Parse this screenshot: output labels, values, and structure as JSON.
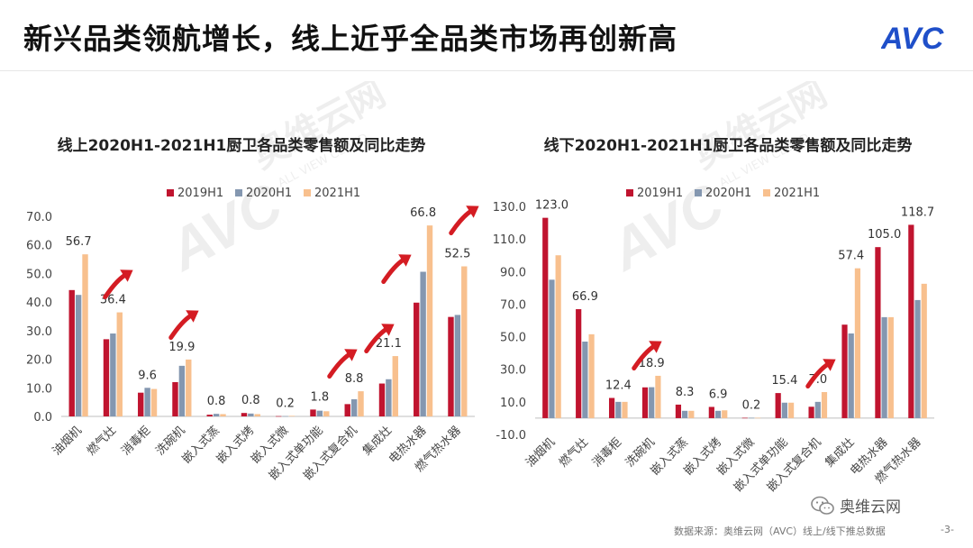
{
  "page": {
    "title": "新兴品类领航增长，线上近乎全品类市场再创新高",
    "brand": "AVC",
    "watermark_cn": "奥维云网",
    "watermark_en": "ALL VIEW CLOUD",
    "wechat_label": "奥维云网",
    "source": "数据来源：奥维云网（AVC）线上/线下推总数据",
    "page_number": "-3-"
  },
  "colors": {
    "2019H1": "#c0142f",
    "2020H1": "#8497b0",
    "2021H1": "#f8c08e",
    "arrow": "#d41c23",
    "brand": "#1f4fc9"
  },
  "chart_data": [
    {
      "type": "bar",
      "title": "线上2020H1-2021H1厨卫各品类零售额及同比走势",
      "legend": [
        "2019H1",
        "2020H1",
        "2021H1"
      ],
      "categories": [
        "油烟机",
        "燃气灶",
        "消毒柜",
        "洗碗机",
        "嵌入式蒸",
        "嵌入式烤",
        "嵌入式微",
        "嵌入式单功能",
        "嵌入式复合机",
        "集成灶",
        "电热水器",
        "燃气热水器"
      ],
      "series": [
        {
          "name": "2019H1",
          "values": [
            44.2,
            27.0,
            8.3,
            12.0,
            0.6,
            1.2,
            0.1,
            2.4,
            4.3,
            11.5,
            39.8,
            34.8
          ]
        },
        {
          "name": "2020H1",
          "values": [
            42.5,
            29.0,
            10.0,
            17.7,
            0.9,
            1.0,
            0.1,
            2.0,
            6.0,
            13.0,
            50.6,
            35.5
          ]
        },
        {
          "name": "2021H1",
          "values": [
            56.7,
            36.4,
            9.6,
            19.9,
            0.8,
            0.8,
            0.2,
            1.8,
            8.8,
            21.1,
            66.8,
            52.5
          ]
        }
      ],
      "data_labels": [
        "56.7",
        "36.4",
        "9.6",
        "19.9",
        "0.8",
        "0.8",
        "0.2",
        "1.8",
        "8.8",
        "21.1",
        "66.8",
        "52.5"
      ],
      "ylim": [
        0,
        70
      ],
      "yticks": [
        "0.0",
        "10.0",
        "20.0",
        "30.0",
        "40.0",
        "50.0",
        "60.0",
        "70.0"
      ],
      "grid": false,
      "legend_position": "top"
    },
    {
      "type": "bar",
      "title": "线下2020H1-2021H1厨卫各品类零售额及同比走势",
      "legend": [
        "2019H1",
        "2020H1",
        "2021H1"
      ],
      "categories": [
        "油烟机",
        "燃气灶",
        "消毒柜",
        "洗碗机",
        "嵌入式蒸",
        "嵌入式烤",
        "嵌入式微",
        "嵌入式单功能",
        "嵌入式复合机",
        "集成灶",
        "电热水器",
        "燃气热水器"
      ],
      "series": [
        {
          "name": "2019H1",
          "values": [
            123.0,
            66.9,
            12.4,
            18.9,
            8.3,
            6.9,
            0.2,
            15.4,
            7.0,
            57.4,
            105.0,
            118.7
          ]
        },
        {
          "name": "2020H1",
          "values": [
            85.0,
            47.0,
            10.0,
            19.0,
            4.5,
            4.5,
            0.2,
            9.5,
            10.0,
            52.0,
            62.0,
            72.5
          ]
        },
        {
          "name": "2021H1",
          "values": [
            100.0,
            51.5,
            10.0,
            26.0,
            4.5,
            4.8,
            0.2,
            9.5,
            16.0,
            92.0,
            62.0,
            82.5
          ]
        }
      ],
      "data_labels": [
        "123.0",
        "66.9",
        "12.4",
        "18.9",
        "8.3",
        "6.9",
        "0.2",
        "15.4",
        "7.0",
        "57.4",
        "105.0",
        "118.7"
      ],
      "ylim": [
        -10,
        130
      ],
      "yticks": [
        "-10.0",
        "10.0",
        "30.0",
        "50.0",
        "70.0",
        "90.0",
        "110.0",
        "130.0"
      ],
      "grid": false,
      "legend_position": "top"
    }
  ]
}
